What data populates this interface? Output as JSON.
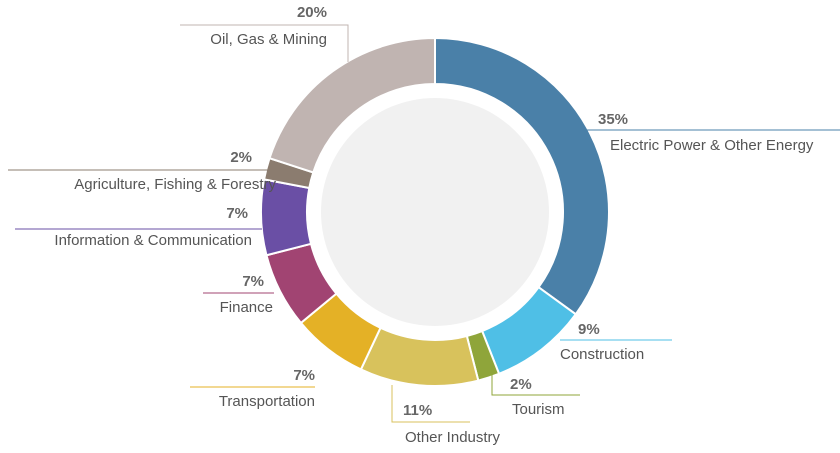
{
  "chart_data": {
    "type": "donut",
    "categories": [
      "Electric Power & Other Energy",
      "Construction",
      "Tourism",
      "Other Industry",
      "Transportation",
      "Finance",
      "Information & Communication",
      "Agriculture, Fishing & Forestry",
      "Oil, Gas & Mining"
    ],
    "values": [
      35,
      9,
      2,
      11,
      7,
      7,
      7,
      2,
      20
    ],
    "value_labels": [
      "35%",
      "9%",
      "2%",
      "11%",
      "7%",
      "7%",
      "7%",
      "2%",
      "20%"
    ],
    "colors": [
      "#4a80a8",
      "#4fbfe6",
      "#8fa53a",
      "#d8c25c",
      "#e4b126",
      "#a14472",
      "#6a4fa5",
      "#8b7c6f",
      "#c0b4b1"
    ]
  }
}
